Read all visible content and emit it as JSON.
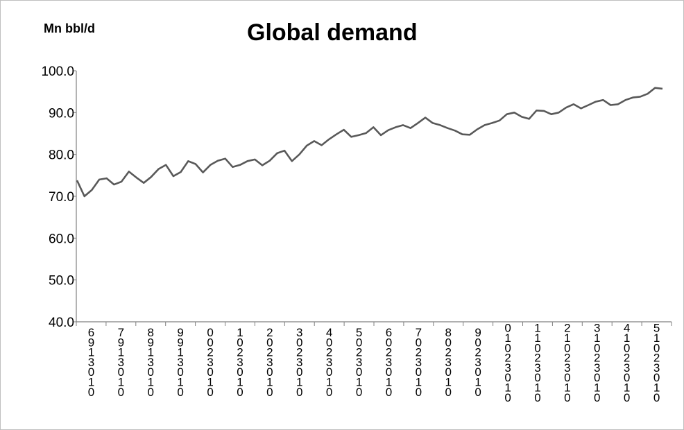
{
  "chart_data": {
    "type": "line",
    "title": "Global demand",
    "ylabel": "Mn bbl/d",
    "xlabel": "",
    "ylim": [
      40,
      100
    ],
    "yticks": [
      "40.0",
      "50.0",
      "60.0",
      "70.0",
      "80.0",
      "90.0",
      "100.0"
    ],
    "grid": false,
    "line_color": "#595959",
    "x_tick_labels": [
      "6\n9\n1\n3\n0\n1\n0",
      "7\n9\n1\n3\n0\n1\n0",
      "8\n9\n1\n3\n0\n1\n0",
      "9\n9\n1\n3\n0\n1\n0",
      "0\n0\n2\n3\n0\n1\n0",
      "1\n0\n2\n3\n0\n1\n0",
      "2\n0\n2\n3\n0\n1\n0",
      "3\n0\n2\n3\n0\n1\n0",
      "4\n0\n2\n3\n0\n1\n0",
      "5\n0\n2\n3\n0\n1\n0",
      "6\n0\n2\n3\n0\n1\n0",
      "7\n0\n2\n3\n0\n1\n0",
      "8\n0\n2\n3\n0\n1\n0",
      "9\n0\n2\n3\n0\n1\n0",
      "0\n1\n0\n2\n3\n0\n1\n0",
      "1\n1\n0\n2\n3\n0\n1\n0",
      "2\n1\n0\n2\n3\n0\n1\n0",
      "3\n1\n0\n2\n3\n0\n1\n0",
      "4\n1\n0\n2\n3\n0\n1\n0",
      "5\n1\n0\n2\n3\n0\n1\n0"
    ],
    "series": [
      {
        "values": [
          73.8,
          70.0,
          71.5,
          74.0,
          74.3,
          72.8,
          73.5,
          75.9,
          74.5,
          73.2,
          74.6,
          76.5,
          77.5,
          74.8,
          75.8,
          78.4,
          77.7,
          75.7,
          77.5,
          78.5,
          79.0,
          77.0,
          77.5,
          78.4,
          78.8,
          77.4,
          78.5,
          80.3,
          80.9,
          78.4,
          80.0,
          82.1,
          83.2,
          82.2,
          83.6,
          84.8,
          85.9,
          84.2,
          84.6,
          85.1,
          86.5,
          84.6,
          85.8,
          86.5,
          87.0,
          86.3,
          87.5,
          88.8,
          87.5,
          87.0,
          86.3,
          85.7,
          84.8,
          84.7,
          86.0,
          87.0,
          87.5,
          88.1,
          89.6,
          90.0,
          89.0,
          88.5,
          90.5,
          90.4,
          89.6,
          90.0,
          91.2,
          92.0,
          91.0,
          91.8,
          92.6,
          93.0,
          91.8,
          92.0,
          93.0,
          93.6,
          93.8,
          94.5,
          95.9,
          95.7
        ]
      }
    ]
  }
}
